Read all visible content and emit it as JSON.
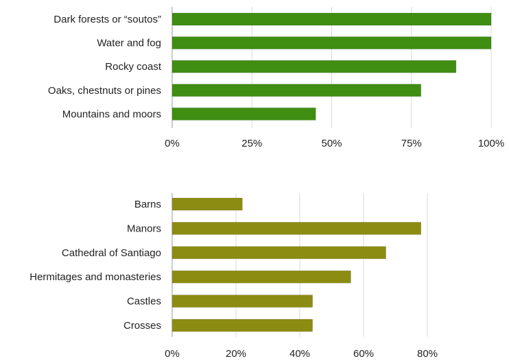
{
  "chart_data": [
    {
      "type": "bar",
      "orientation": "horizontal",
      "categories": [
        "Dark forests or “soutos”",
        "Water and fog",
        "Rocky coast",
        "Oaks, chestnuts or pines",
        "Mountains and moors"
      ],
      "values": [
        100,
        100,
        89,
        78,
        45
      ],
      "unit": "%",
      "xlim": [
        0,
        100
      ],
      "ticks": [
        "0%",
        "25%",
        "50%",
        "75%",
        "100%"
      ],
      "tick_values": [
        0,
        25,
        50,
        75,
        100
      ],
      "grid": true,
      "bar_color": "#3f8e12"
    },
    {
      "type": "bar",
      "orientation": "horizontal",
      "categories": [
        "Barns",
        "Manors",
        "Cathedral of Santiago",
        "Hermitages and monasteries",
        "Castles",
        "Crosses"
      ],
      "values": [
        22,
        78,
        67,
        56,
        44,
        44
      ],
      "unit": "%",
      "xlim": [
        0,
        100
      ],
      "ticks": [
        "0%",
        "20%",
        "40%",
        "60%",
        "80%"
      ],
      "tick_values": [
        0,
        20,
        40,
        60,
        80
      ],
      "grid": true,
      "bar_color": "#8c8c12"
    }
  ]
}
